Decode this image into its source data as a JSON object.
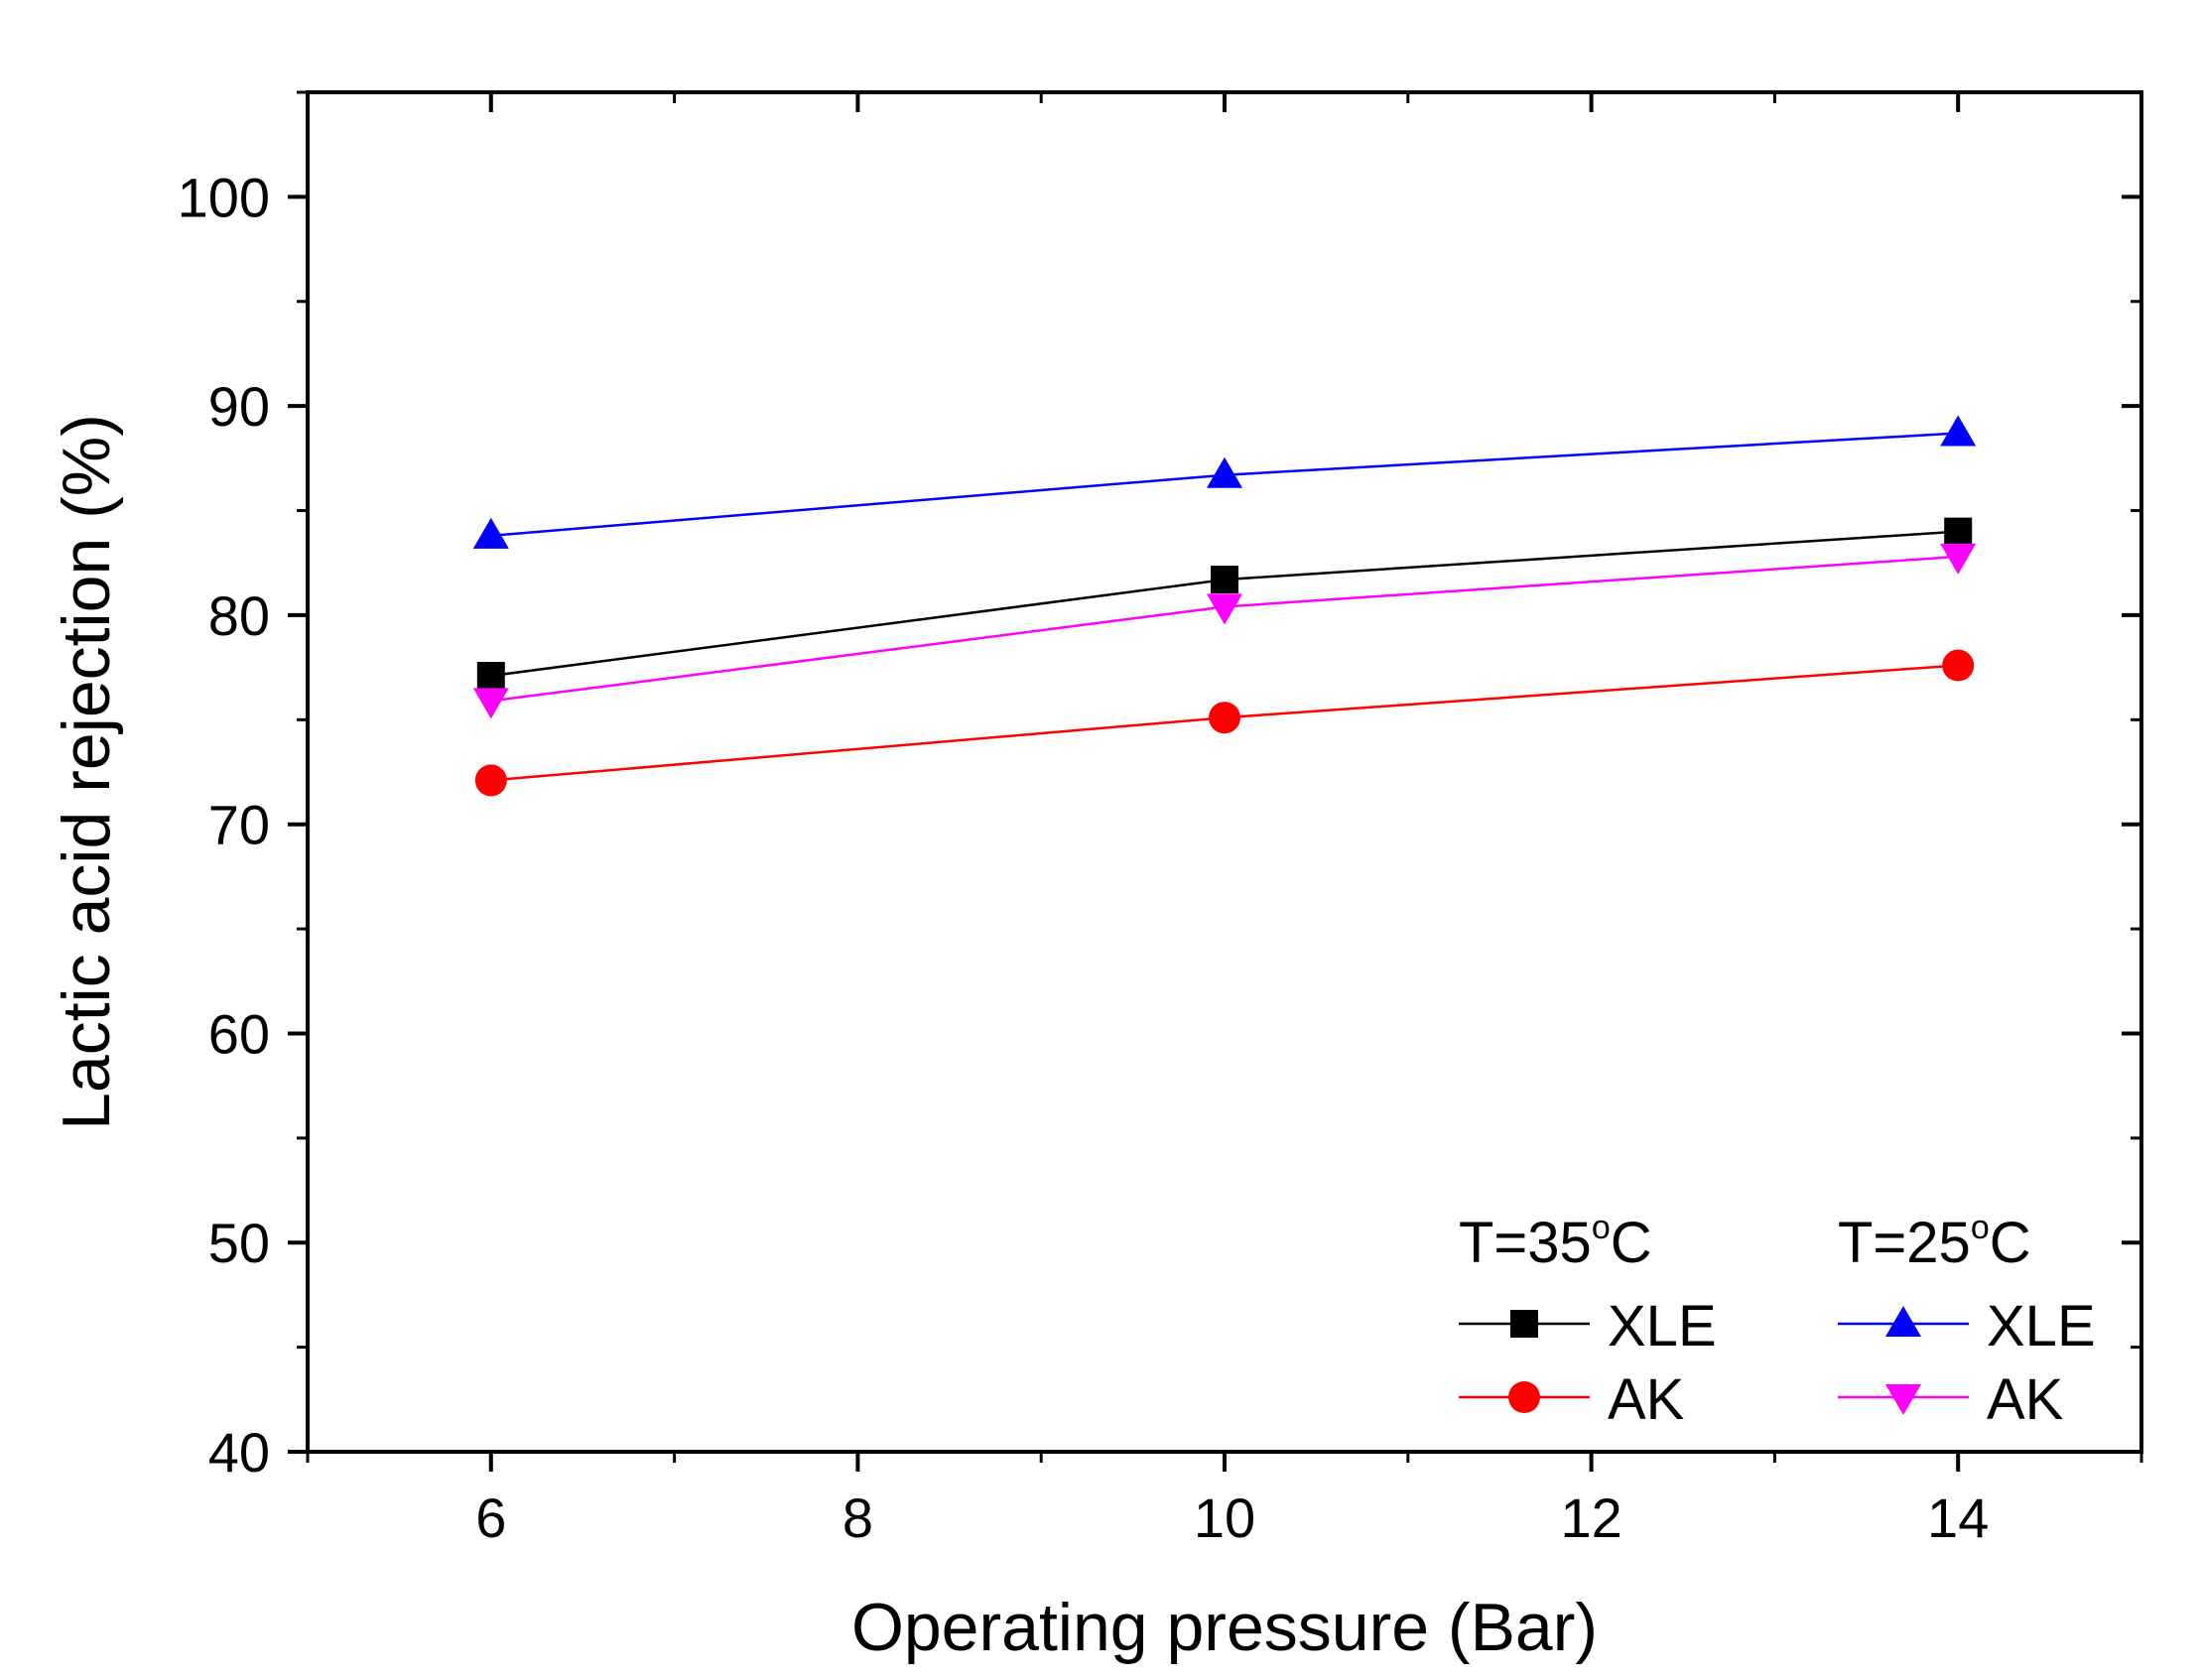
{
  "chart_data": {
    "type": "line",
    "title": "",
    "xlabel": "Operating pressure (Bar)",
    "ylabel": "Lactic acid rejection (%)",
    "xlim": [
      5,
      15
    ],
    "ylim": [
      40,
      105
    ],
    "x_ticks": [
      6,
      8,
      10,
      12,
      14
    ],
    "y_ticks": [
      40,
      50,
      60,
      70,
      80,
      90,
      100
    ],
    "x_tick_labels": [
      "6",
      "8",
      "10",
      "12",
      "14"
    ],
    "y_tick_labels": [
      "40",
      "50",
      "60",
      "70",
      "80",
      "90",
      "100"
    ],
    "grid": false,
    "x": [
      6,
      10,
      14
    ],
    "legend": {
      "placement": "bottom-right",
      "groups": [
        {
          "title_prefix": "T=35",
          "title_sup": "o",
          "title_suffix": "C"
        },
        {
          "title_prefix": "T=25",
          "title_sup": "o",
          "title_suffix": "C"
        }
      ]
    },
    "series": [
      {
        "name": "XLE",
        "group": "T=35°C",
        "color": "#000000",
        "marker": "square",
        "values": [
          77.1,
          81.7,
          84.0
        ]
      },
      {
        "name": "AK",
        "group": "T=35°C",
        "color": "#ff0000",
        "marker": "circle",
        "values": [
          72.1,
          75.1,
          77.6
        ]
      },
      {
        "name": "XLE",
        "group": "T=25°C",
        "color": "#0000ff",
        "marker": "triangle-up",
        "values": [
          83.8,
          86.7,
          88.7
        ]
      },
      {
        "name": "AK",
        "group": "T=25°C",
        "color": "#ff00ff",
        "marker": "triangle-down",
        "values": [
          75.9,
          80.4,
          82.8
        ]
      }
    ]
  }
}
